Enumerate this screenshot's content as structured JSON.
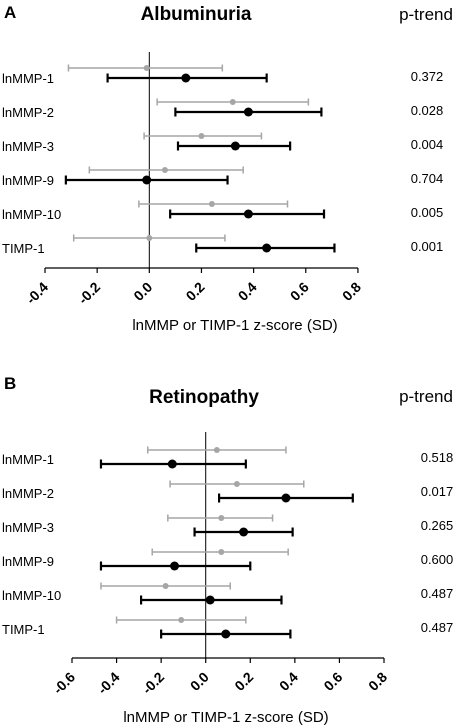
{
  "colors": {
    "grey_series": "#a6a6a6",
    "black_series": "#000000",
    "axis": "#000000"
  },
  "chart_data": [
    {
      "type": "forest",
      "panel_letter": "A",
      "title": "Albuminuria",
      "ptrend_header": "p-trend",
      "xlabel": "lnMMP or TIMP-1 z-score (SD)",
      "xlim": [
        -0.4,
        0.9
      ],
      "ticks": [
        "-0.4",
        "-0.2",
        "0.0",
        "0.2",
        "0.4",
        "0.6",
        "0.8"
      ],
      "tick_values": [
        -0.4,
        -0.2,
        0.0,
        0.2,
        0.4,
        0.6,
        0.8
      ],
      "rows": [
        {
          "label": "lnMMP-1",
          "p_trend": "0.372",
          "grey": {
            "est": -0.01,
            "lo": -0.31,
            "hi": 0.28
          },
          "black": {
            "est": 0.14,
            "lo": -0.16,
            "hi": 0.45
          }
        },
        {
          "label": "lnMMP-2",
          "p_trend": "0.028",
          "grey": {
            "est": 0.32,
            "lo": 0.03,
            "hi": 0.61
          },
          "black": {
            "est": 0.38,
            "lo": 0.1,
            "hi": 0.66
          }
        },
        {
          "label": "lnMMP-3",
          "p_trend": "0.004",
          "grey": {
            "est": 0.2,
            "lo": -0.02,
            "hi": 0.43
          },
          "black": {
            "est": 0.33,
            "lo": 0.11,
            "hi": 0.54
          }
        },
        {
          "label": "lnMMP-9",
          "p_trend": "0.704",
          "grey": {
            "est": 0.06,
            "lo": -0.23,
            "hi": 0.36
          },
          "black": {
            "est": -0.01,
            "lo": -0.32,
            "hi": 0.3
          }
        },
        {
          "label": "lnMMP-10",
          "p_trend": "0.005",
          "grey": {
            "est": 0.24,
            "lo": -0.04,
            "hi": 0.53
          },
          "black": {
            "est": 0.38,
            "lo": 0.08,
            "hi": 0.67
          }
        },
        {
          "label": "TIMP-1",
          "p_trend": "0.001",
          "grey": {
            "est": 0.0,
            "lo": -0.29,
            "hi": 0.29
          },
          "black": {
            "est": 0.45,
            "lo": 0.18,
            "hi": 0.71
          }
        }
      ]
    },
    {
      "type": "forest",
      "panel_letter": "B",
      "title": "Retinopathy",
      "ptrend_header": "p-trend",
      "xlabel": "lnMMP or TIMP-1 z-score (SD)",
      "xlim": [
        -0.6,
        0.8
      ],
      "ticks": [
        "-0.6",
        "-0.4",
        "-0.2",
        "0.0",
        "0.2",
        "0.4",
        "0.6",
        "0.8"
      ],
      "tick_values": [
        -0.6,
        -0.4,
        -0.2,
        0.0,
        0.2,
        0.4,
        0.6,
        0.8
      ],
      "rows": [
        {
          "label": "lnMMP-1",
          "p_trend": "0.518",
          "grey": {
            "est": 0.05,
            "lo": -0.26,
            "hi": 0.36
          },
          "black": {
            "est": -0.15,
            "lo": -0.47,
            "hi": 0.18
          }
        },
        {
          "label": "lnMMP-2",
          "p_trend": "0.017",
          "grey": {
            "est": 0.14,
            "lo": -0.16,
            "hi": 0.44
          },
          "black": {
            "est": 0.36,
            "lo": 0.06,
            "hi": 0.66
          }
        },
        {
          "label": "lnMMP-3",
          "p_trend": "0.265",
          "grey": {
            "est": 0.07,
            "lo": -0.17,
            "hi": 0.3
          },
          "black": {
            "est": 0.17,
            "lo": -0.05,
            "hi": 0.39
          }
        },
        {
          "label": "lnMMP-9",
          "p_trend": "0.600",
          "grey": {
            "est": 0.07,
            "lo": -0.24,
            "hi": 0.37
          },
          "black": {
            "est": -0.14,
            "lo": -0.47,
            "hi": 0.2
          }
        },
        {
          "label": "lnMMP-10",
          "p_trend": "0.487",
          "grey": {
            "est": -0.18,
            "lo": -0.47,
            "hi": 0.11
          },
          "black": {
            "est": 0.02,
            "lo": -0.29,
            "hi": 0.34
          }
        },
        {
          "label": "TIMP-1",
          "p_trend": "0.487",
          "grey": {
            "est": -0.11,
            "lo": -0.4,
            "hi": 0.18
          },
          "black": {
            "est": 0.09,
            "lo": -0.2,
            "hi": 0.38
          }
        }
      ]
    }
  ]
}
